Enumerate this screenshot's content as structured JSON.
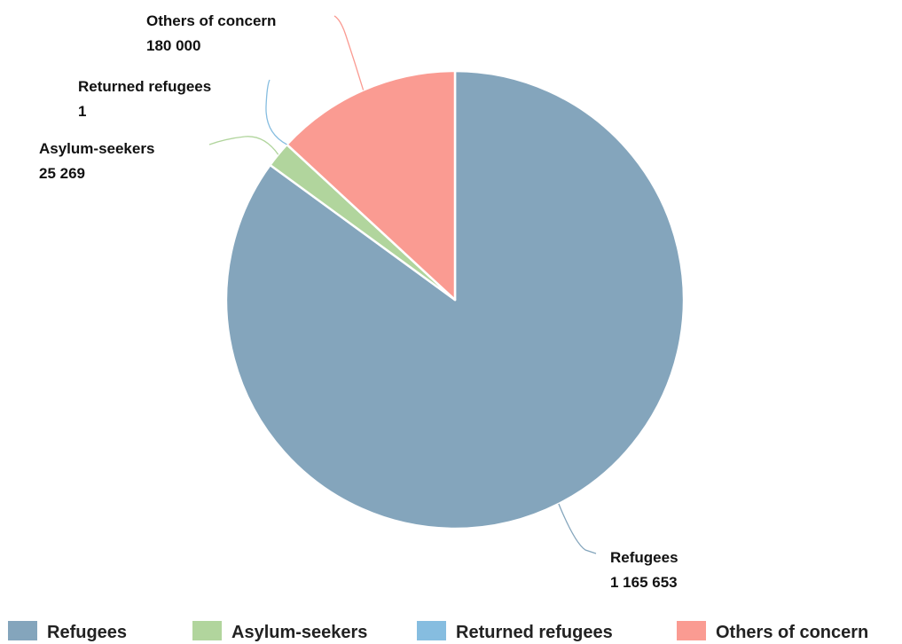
{
  "chart_data": {
    "type": "pie",
    "title": "",
    "legend_position": "bottom",
    "slices": [
      {
        "name": "Refugees",
        "value": 1165653,
        "value_label": "1 165 653",
        "color": "#84a5bc"
      },
      {
        "name": "Asylum-seekers",
        "value": 25269,
        "value_label": "25 269",
        "color": "#b1d59d"
      },
      {
        "name": "Returned refugees",
        "value": 1,
        "value_label": "1",
        "color": "#86bde0"
      },
      {
        "name": "Others of concern",
        "value": 180000,
        "value_label": "180 000",
        "color": "#fa9b92"
      }
    ]
  }
}
